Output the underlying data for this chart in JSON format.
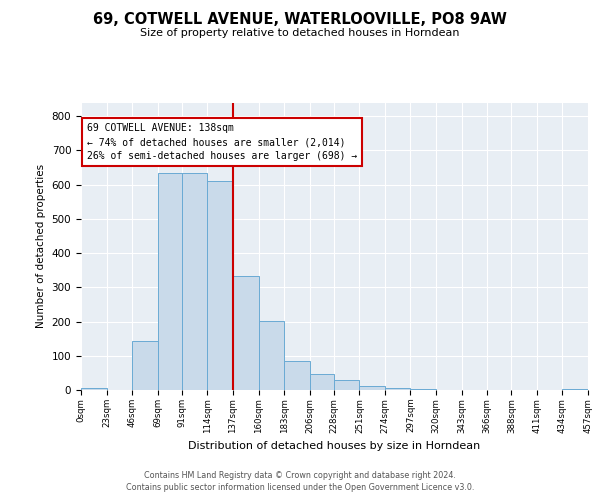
{
  "title": "69, COTWELL AVENUE, WATERLOOVILLE, PO8 9AW",
  "subtitle": "Size of property relative to detached houses in Horndean",
  "xlabel": "Distribution of detached houses by size in Horndean",
  "ylabel": "Number of detached properties",
  "bin_edges": [
    0,
    23,
    46,
    69,
    91,
    114,
    137,
    160,
    183,
    206,
    228,
    251,
    274,
    297,
    320,
    343,
    366,
    388,
    411,
    434,
    457
  ],
  "bin_labels": [
    "0sqm",
    "23sqm",
    "46sqm",
    "69sqm",
    "91sqm",
    "114sqm",
    "137sqm",
    "160sqm",
    "183sqm",
    "206sqm",
    "228sqm",
    "251sqm",
    "274sqm",
    "297sqm",
    "320sqm",
    "343sqm",
    "366sqm",
    "388sqm",
    "411sqm",
    "434sqm",
    "457sqm"
  ],
  "counts": [
    5,
    0,
    143,
    635,
    633,
    611,
    333,
    201,
    84,
    47,
    28,
    13,
    5,
    2,
    0,
    0,
    0,
    0,
    0,
    3
  ],
  "bar_color": "#c9daea",
  "bar_edge_color": "#6aaad4",
  "vline_color": "#cc0000",
  "vline_x": 137,
  "annotation_text": "69 COTWELL AVENUE: 138sqm\n← 74% of detached houses are smaller (2,014)\n26% of semi-detached houses are larger (698) →",
  "annotation_box_color": "#ffffff",
  "annotation_box_edge_color": "#cc0000",
  "ylim": [
    0,
    840
  ],
  "yticks": [
    0,
    100,
    200,
    300,
    400,
    500,
    600,
    700,
    800
  ],
  "background_color": "#e8eef4",
  "footer_line1": "Contains HM Land Registry data © Crown copyright and database right 2024.",
  "footer_line2": "Contains public sector information licensed under the Open Government Licence v3.0."
}
